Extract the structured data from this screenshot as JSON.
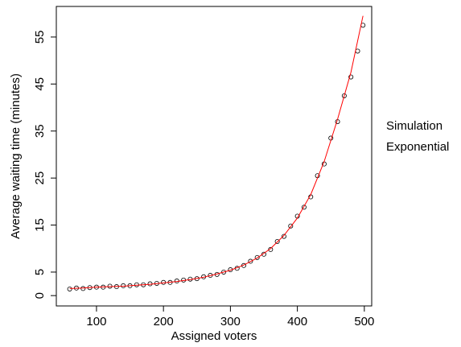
{
  "chart_data": {
    "type": "scatter",
    "xlabel": "Assigned voters",
    "ylabel": "Average waiting time (minutes)",
    "xlim": [
      40,
      511
    ],
    "ylim": [
      -2.2,
      61.5
    ],
    "xticks": [
      100,
      200,
      300,
      400,
      500
    ],
    "yticks": [
      0,
      5,
      15,
      25,
      35,
      45,
      55
    ],
    "series": [
      {
        "name": "Simulation",
        "type": "scatter",
        "color": "#000000",
        "x": [
          60,
          70,
          80,
          90,
          100,
          110,
          120,
          130,
          140,
          150,
          160,
          170,
          180,
          190,
          200,
          210,
          220,
          230,
          240,
          250,
          260,
          270,
          280,
          290,
          300,
          310,
          320,
          330,
          340,
          350,
          360,
          370,
          380,
          390,
          400,
          410,
          420,
          430,
          440,
          450,
          460,
          470,
          480,
          490,
          498
        ],
        "values": [
          1.4,
          1.6,
          1.5,
          1.7,
          1.8,
          1.8,
          2.0,
          1.9,
          2.1,
          2.1,
          2.3,
          2.3,
          2.5,
          2.6,
          2.8,
          2.8,
          3.1,
          3.3,
          3.5,
          3.6,
          4.0,
          4.3,
          4.5,
          5.0,
          5.5,
          5.8,
          6.4,
          7.3,
          8.1,
          8.8,
          9.8,
          11.5,
          12.6,
          14.8,
          16.9,
          18.8,
          21.0,
          25.5,
          28.0,
          33.5,
          37.0,
          42.5,
          46.5,
          52.0,
          57.5
        ]
      },
      {
        "name": "Exponential",
        "type": "line",
        "color": "#ff0000",
        "x": [
          60,
          80,
          100,
          120,
          140,
          160,
          180,
          200,
          220,
          240,
          260,
          280,
          300,
          320,
          340,
          360,
          380,
          400,
          420,
          440,
          460,
          480,
          498
        ],
        "values": [
          1.5,
          1.6,
          1.8,
          1.9,
          2.0,
          2.2,
          2.4,
          2.7,
          3.0,
          3.4,
          3.9,
          4.6,
          5.4,
          6.5,
          8.0,
          10.0,
          12.8,
          16.5,
          21.5,
          28.5,
          37.5,
          47.5,
          59.5
        ]
      }
    ]
  }
}
